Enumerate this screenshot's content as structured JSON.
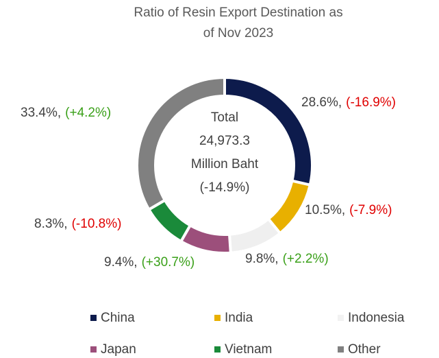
{
  "chart_data": {
    "type": "donut",
    "title": "Ratio of Resin Export Destination as of Nov 2023",
    "categories": [
      "China",
      "India",
      "Indonesia",
      "Japan",
      "Vietnam",
      "Other"
    ],
    "values": [
      28.6,
      10.5,
      9.8,
      9.4,
      8.3,
      33.4
    ],
    "value_labels": [
      "28.6%,",
      "10.5%,",
      "9.8%,",
      "9.4%,",
      "8.3%,",
      "33.4%,"
    ],
    "changes": [
      -16.9,
      -7.9,
      2.2,
      30.7,
      -10.8,
      4.2
    ],
    "change_labels": [
      "(-16.9%)",
      "(-7.9%)",
      "(+2.2%)",
      "(+30.7%)",
      "(-10.8%)",
      "(+4.2%)"
    ],
    "colors": [
      "#0d1b4c",
      "#e8b000",
      "#efefef",
      "#9c4f7b",
      "#1a8a3a",
      "#808080"
    ],
    "center": {
      "lines": [
        "Total",
        "24,973.3",
        "Million Baht"
      ],
      "change": -14.9,
      "change_label": "(-14.9%)"
    },
    "legend": "bottom"
  }
}
